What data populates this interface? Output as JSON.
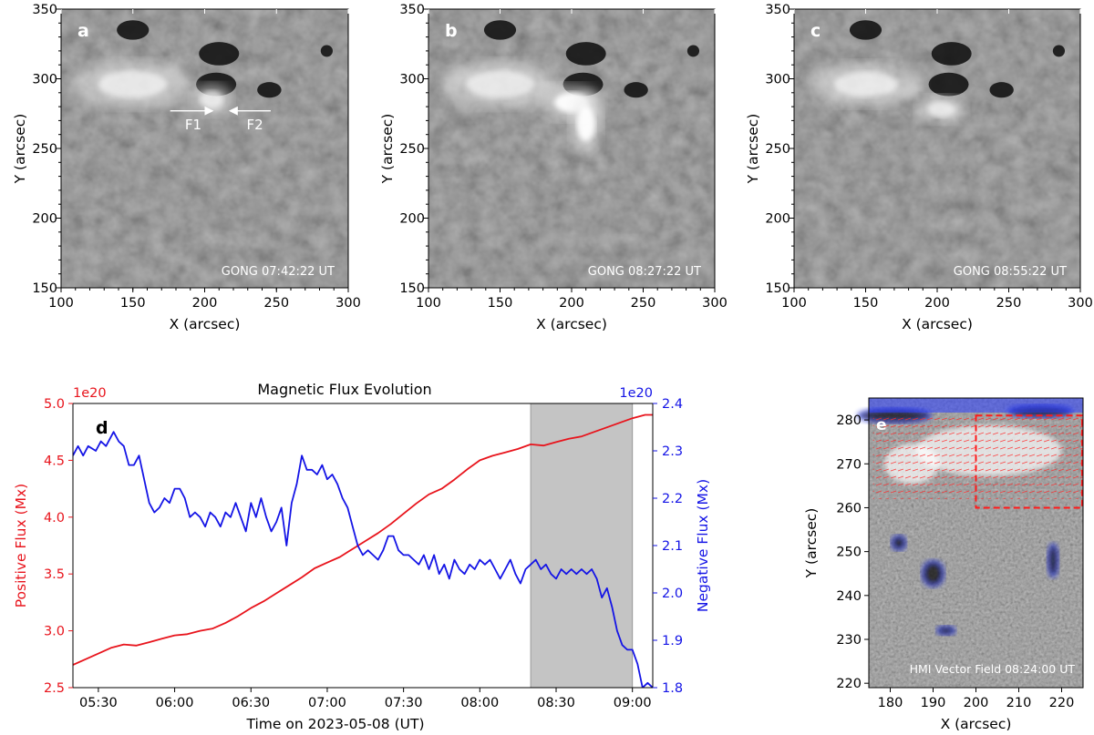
{
  "colors": {
    "positive": "#e8141c",
    "negative": "#1414e6",
    "shade": "#c4c4c4"
  },
  "chart_data": [
    {
      "type": "heatmap",
      "panel_label": "a",
      "stamp": "GONG  07:42:22 UT",
      "xlabel": "X (arcsec)",
      "ylabel": "Y (arcsec)",
      "xlim": [
        100,
        300
      ],
      "ylim": [
        150,
        350
      ],
      "xticks": [
        "100",
        "150",
        "200",
        "250",
        "300"
      ],
      "yticks": [
        "150",
        "200",
        "250",
        "300",
        "350"
      ],
      "annotations": [
        {
          "text": "F1",
          "x": 192,
          "y": 265
        },
        {
          "text": "F2",
          "x": 235,
          "y": 265
        }
      ],
      "bright_regions": [
        {
          "x": 150,
          "y": 296,
          "rx": 30,
          "ry": 12
        },
        {
          "x": 205,
          "y": 285,
          "rx": 10,
          "ry": 8
        }
      ]
    },
    {
      "type": "heatmap",
      "panel_label": "b",
      "stamp": "GONG  08:27:22 UT",
      "xlabel": "X (arcsec)",
      "ylabel": "Y (arcsec)",
      "xlim": [
        100,
        300
      ],
      "ylim": [
        150,
        350
      ],
      "xticks": [
        "100",
        "150",
        "200",
        "250",
        "300"
      ],
      "yticks": [
        "150",
        "200",
        "250",
        "300",
        "350"
      ],
      "bright_regions": [
        {
          "x": 150,
          "y": 296,
          "rx": 30,
          "ry": 12
        },
        {
          "x": 200,
          "y": 283,
          "rx": 15,
          "ry": 9
        },
        {
          "x": 210,
          "y": 268,
          "rx": 8,
          "ry": 16
        }
      ]
    },
    {
      "type": "heatmap",
      "panel_label": "c",
      "stamp": "GONG  08:55:22 UT",
      "xlabel": "X (arcsec)",
      "ylabel": "Y (arcsec)",
      "xlim": [
        100,
        300
      ],
      "ylim": [
        150,
        350
      ],
      "xticks": [
        "100",
        "150",
        "200",
        "250",
        "300"
      ],
      "yticks": [
        "150",
        "200",
        "250",
        "300",
        "350"
      ],
      "bright_regions": [
        {
          "x": 150,
          "y": 296,
          "rx": 28,
          "ry": 11
        },
        {
          "x": 203,
          "y": 278,
          "rx": 12,
          "ry": 7
        }
      ]
    },
    {
      "type": "line",
      "panel_label": "d",
      "title": "Magnetic Flux Evolution",
      "xlabel": "Time on 2023-05-08 (UT)",
      "ylabel_left": "Positive Flux (Mx)",
      "ylabel_right": "Negative Flux (Mx)",
      "scale_left": "1e20",
      "scale_right": "1e20",
      "xlim_minutes_after_0500": [
        20,
        248
      ],
      "xticks": [
        {
          "label": "05:30",
          "min": 30
        },
        {
          "label": "06:00",
          "min": 60
        },
        {
          "label": "06:30",
          "min": 90
        },
        {
          "label": "07:00",
          "min": 120
        },
        {
          "label": "07:30",
          "min": 150
        },
        {
          "label": "08:00",
          "min": 180
        },
        {
          "label": "08:30",
          "min": 210
        },
        {
          "label": "09:00",
          "min": 240
        }
      ],
      "ylim_left": [
        2.5,
        5.0
      ],
      "yticks_left": [
        "2.5",
        "3.0",
        "3.5",
        "4.0",
        "4.5",
        "5.0"
      ],
      "ylim_right": [
        1.8,
        2.4
      ],
      "yticks_right": [
        "1.8",
        "1.9",
        "2.0",
        "2.1",
        "2.2",
        "2.3",
        "2.4"
      ],
      "shaded_interval_min": [
        200,
        240
      ],
      "series": [
        {
          "name": "Positive Flux",
          "axis": "left",
          "points": [
            [
              20,
              2.7
            ],
            [
              25,
              2.75
            ],
            [
              30,
              2.8
            ],
            [
              35,
              2.85
            ],
            [
              40,
              2.88
            ],
            [
              45,
              2.87
            ],
            [
              50,
              2.9
            ],
            [
              55,
              2.93
            ],
            [
              60,
              2.96
            ],
            [
              65,
              2.97
            ],
            [
              70,
              3.0
            ],
            [
              75,
              3.02
            ],
            [
              80,
              3.07
            ],
            [
              85,
              3.13
            ],
            [
              90,
              3.2
            ],
            [
              95,
              3.26
            ],
            [
              100,
              3.33
            ],
            [
              105,
              3.4
            ],
            [
              110,
              3.47
            ],
            [
              115,
              3.55
            ],
            [
              120,
              3.6
            ],
            [
              125,
              3.65
            ],
            [
              130,
              3.72
            ],
            [
              135,
              3.79
            ],
            [
              140,
              3.86
            ],
            [
              145,
              3.94
            ],
            [
              150,
              4.03
            ],
            [
              155,
              4.12
            ],
            [
              160,
              4.2
            ],
            [
              165,
              4.25
            ],
            [
              170,
              4.33
            ],
            [
              175,
              4.42
            ],
            [
              180,
              4.5
            ],
            [
              185,
              4.54
            ],
            [
              190,
              4.57
            ],
            [
              195,
              4.6
            ],
            [
              200,
              4.64
            ],
            [
              205,
              4.63
            ],
            [
              210,
              4.66
            ],
            [
              215,
              4.69
            ],
            [
              220,
              4.71
            ],
            [
              225,
              4.75
            ],
            [
              230,
              4.79
            ],
            [
              235,
              4.83
            ],
            [
              240,
              4.87
            ],
            [
              245,
              4.9
            ],
            [
              248,
              4.9
            ]
          ]
        },
        {
          "name": "Negative Flux",
          "axis": "right",
          "points": [
            [
              20,
              2.29
            ],
            [
              22,
              2.31
            ],
            [
              24,
              2.29
            ],
            [
              26,
              2.31
            ],
            [
              29,
              2.3
            ],
            [
              31,
              2.32
            ],
            [
              33,
              2.31
            ],
            [
              36,
              2.34
            ],
            [
              38,
              2.32
            ],
            [
              40,
              2.31
            ],
            [
              42,
              2.27
            ],
            [
              44,
              2.27
            ],
            [
              46,
              2.29
            ],
            [
              48,
              2.24
            ],
            [
              50,
              2.19
            ],
            [
              52,
              2.17
            ],
            [
              54,
              2.18
            ],
            [
              56,
              2.2
            ],
            [
              58,
              2.19
            ],
            [
              60,
              2.22
            ],
            [
              62,
              2.22
            ],
            [
              64,
              2.2
            ],
            [
              66,
              2.16
            ],
            [
              68,
              2.17
            ],
            [
              70,
              2.16
            ],
            [
              72,
              2.14
            ],
            [
              74,
              2.17
            ],
            [
              76,
              2.16
            ],
            [
              78,
              2.14
            ],
            [
              80,
              2.17
            ],
            [
              82,
              2.16
            ],
            [
              84,
              2.19
            ],
            [
              86,
              2.16
            ],
            [
              88,
              2.13
            ],
            [
              90,
              2.19
            ],
            [
              92,
              2.16
            ],
            [
              94,
              2.2
            ],
            [
              96,
              2.16
            ],
            [
              98,
              2.13
            ],
            [
              100,
              2.15
            ],
            [
              102,
              2.18
            ],
            [
              104,
              2.1
            ],
            [
              106,
              2.19
            ],
            [
              108,
              2.23
            ],
            [
              110,
              2.29
            ],
            [
              112,
              2.26
            ],
            [
              114,
              2.26
            ],
            [
              116,
              2.25
            ],
            [
              118,
              2.27
            ],
            [
              120,
              2.24
            ],
            [
              122,
              2.25
            ],
            [
              124,
              2.23
            ],
            [
              126,
              2.2
            ],
            [
              128,
              2.18
            ],
            [
              130,
              2.14
            ],
            [
              132,
              2.1
            ],
            [
              134,
              2.08
            ],
            [
              136,
              2.09
            ],
            [
              138,
              2.08
            ],
            [
              140,
              2.07
            ],
            [
              142,
              2.09
            ],
            [
              144,
              2.12
            ],
            [
              146,
              2.12
            ],
            [
              148,
              2.09
            ],
            [
              150,
              2.08
            ],
            [
              152,
              2.08
            ],
            [
              154,
              2.07
            ],
            [
              156,
              2.06
            ],
            [
              158,
              2.08
            ],
            [
              160,
              2.05
            ],
            [
              162,
              2.08
            ],
            [
              164,
              2.04
            ],
            [
              166,
              2.06
            ],
            [
              168,
              2.03
            ],
            [
              170,
              2.07
            ],
            [
              172,
              2.05
            ],
            [
              174,
              2.04
            ],
            [
              176,
              2.06
            ],
            [
              178,
              2.05
            ],
            [
              180,
              2.07
            ],
            [
              182,
              2.06
            ],
            [
              184,
              2.07
            ],
            [
              186,
              2.05
            ],
            [
              188,
              2.03
            ],
            [
              190,
              2.05
            ],
            [
              192,
              2.07
            ],
            [
              194,
              2.04
            ],
            [
              196,
              2.02
            ],
            [
              198,
              2.05
            ],
            [
              200,
              2.06
            ],
            [
              202,
              2.07
            ],
            [
              204,
              2.05
            ],
            [
              206,
              2.06
            ],
            [
              208,
              2.04
            ],
            [
              210,
              2.03
            ],
            [
              212,
              2.05
            ],
            [
              214,
              2.04
            ],
            [
              216,
              2.05
            ],
            [
              218,
              2.04
            ],
            [
              220,
              2.05
            ],
            [
              222,
              2.04
            ],
            [
              224,
              2.05
            ],
            [
              226,
              2.03
            ],
            [
              228,
              1.99
            ],
            [
              230,
              2.01
            ],
            [
              232,
              1.97
            ],
            [
              234,
              1.92
            ],
            [
              236,
              1.89
            ],
            [
              238,
              1.88
            ],
            [
              240,
              1.88
            ],
            [
              242,
              1.85
            ],
            [
              244,
              1.8
            ],
            [
              246,
              1.81
            ],
            [
              248,
              1.8
            ]
          ]
        }
      ]
    },
    {
      "type": "heatmap",
      "panel_label": "e",
      "stamp": "HMI Vector Field 08:24:00 UT",
      "xlabel": "X (arcsec)",
      "ylabel": "Y (arcsec)",
      "xlim": [
        175,
        225
      ],
      "ylim": [
        219,
        285
      ],
      "xticks": [
        "180",
        "190",
        "200",
        "210",
        "220"
      ],
      "yticks": [
        "220",
        "230",
        "240",
        "250",
        "260",
        "270",
        "280"
      ],
      "box": {
        "x": [
          200,
          225
        ],
        "y": [
          260,
          281
        ]
      }
    }
  ]
}
